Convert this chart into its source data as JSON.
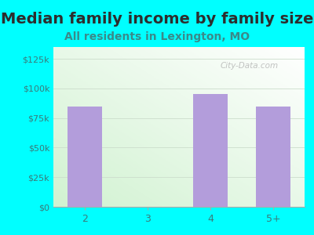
{
  "title": "Median family income by family size",
  "subtitle": "All residents in Lexington, MO",
  "categories": [
    "2",
    "3",
    "4",
    "5+"
  ],
  "values": [
    85000,
    0,
    95000,
    85000
  ],
  "bar_color": "#b39ddb",
  "title_color": "#2d2d2d",
  "subtitle_color": "#3a8a8a",
  "background_color": "#00ffff",
  "tick_color": "#3a7a7a",
  "yticks": [
    0,
    25000,
    50000,
    75000,
    100000,
    125000
  ],
  "ytick_labels": [
    "$0",
    "$25k",
    "$50k",
    "$75k",
    "$100k",
    "$125k"
  ],
  "ylim": [
    0,
    135000
  ],
  "watermark": "City-Data.com",
  "title_fontsize": 14,
  "subtitle_fontsize": 10,
  "bar_width": 0.55
}
